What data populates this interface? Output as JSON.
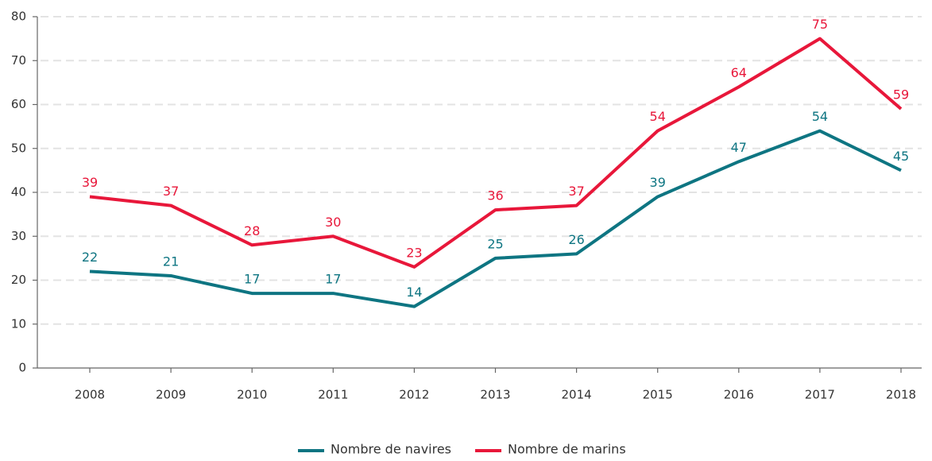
{
  "chart_data": {
    "type": "line",
    "categories": [
      "2008",
      "2009",
      "2010",
      "2011",
      "2012",
      "2013",
      "2014",
      "2015",
      "2016",
      "2017",
      "2018"
    ],
    "series": [
      {
        "name": "Nombre de navires",
        "color": "#0e7582",
        "values": [
          22,
          21,
          17,
          17,
          14,
          25,
          26,
          39,
          47,
          54,
          45
        ]
      },
      {
        "name": "Nombre de marins",
        "color": "#e8173a",
        "values": [
          39,
          37,
          28,
          30,
          23,
          36,
          37,
          54,
          64,
          75,
          59
        ]
      }
    ],
    "ylim": [
      0,
      80
    ],
    "yticks": [
      0,
      10,
      20,
      30,
      40,
      50,
      60,
      70,
      80
    ],
    "grid": true,
    "legend": "bottom"
  }
}
